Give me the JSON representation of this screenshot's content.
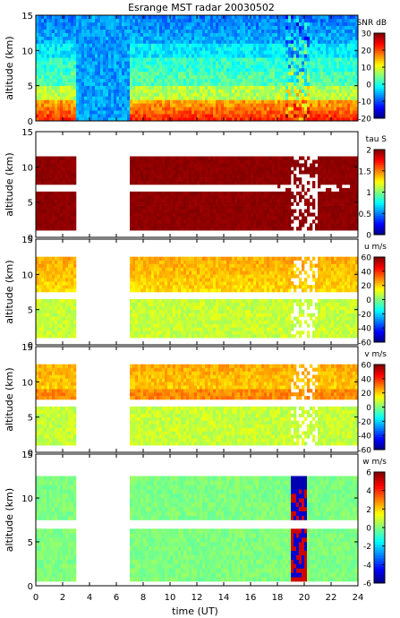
{
  "chart_data": {
    "title": "Esrange MST radar 20030502",
    "xlabel": "time (UT)",
    "x_ticks": [
      0,
      2,
      4,
      6,
      8,
      10,
      12,
      14,
      16,
      18,
      20,
      22,
      24
    ],
    "xlim": [
      0,
      24
    ],
    "data_gaps_hours": [
      [
        3.1,
        7.0
      ]
    ],
    "panels": [
      {
        "type": "heatmap",
        "ylabel": "altitude (km)",
        "ylim": [
          0,
          15
        ],
        "y_ticks": [
          0,
          5,
          10,
          15
        ],
        "colorbar": {
          "label": "SNR dB",
          "range": [
            -20,
            30
          ],
          "ticks": [
            -20,
            -10,
            0,
            10,
            20,
            30
          ]
        }
      },
      {
        "type": "heatmap",
        "ylabel": "altitude (km)",
        "ylim": [
          0,
          15
        ],
        "y_ticks": [
          0,
          5,
          10,
          15
        ],
        "colorbar": {
          "label": "tau S",
          "range": [
            0,
            2
          ],
          "ticks": [
            0,
            0.5,
            1,
            1.5,
            2
          ]
        }
      },
      {
        "type": "heatmap",
        "ylabel": "altitude (km)",
        "ylim": [
          0,
          15
        ],
        "y_ticks": [
          0,
          5,
          10,
          15
        ],
        "colorbar": {
          "label": "u m/s",
          "range": [
            -60,
            60
          ],
          "ticks": [
            -60,
            -40,
            -20,
            0,
            20,
            40,
            60
          ]
        }
      },
      {
        "type": "heatmap",
        "ylabel": "altitude (km)",
        "ylim": [
          0,
          15
        ],
        "y_ticks": [
          0,
          5,
          10,
          15
        ],
        "colorbar": {
          "label": "v m/s",
          "range": [
            -60,
            60
          ],
          "ticks": [
            -60,
            -40,
            -20,
            0,
            20,
            40,
            60
          ]
        }
      },
      {
        "type": "heatmap",
        "ylabel": "altitude (km)",
        "ylim": [
          0,
          15
        ],
        "y_ticks": [
          0,
          5,
          10,
          15
        ],
        "colorbar": {
          "label": "w m/s",
          "range": [
            -6,
            6
          ],
          "ticks": [
            -6,
            -4,
            -2,
            0,
            2,
            4,
            6
          ]
        }
      }
    ]
  }
}
